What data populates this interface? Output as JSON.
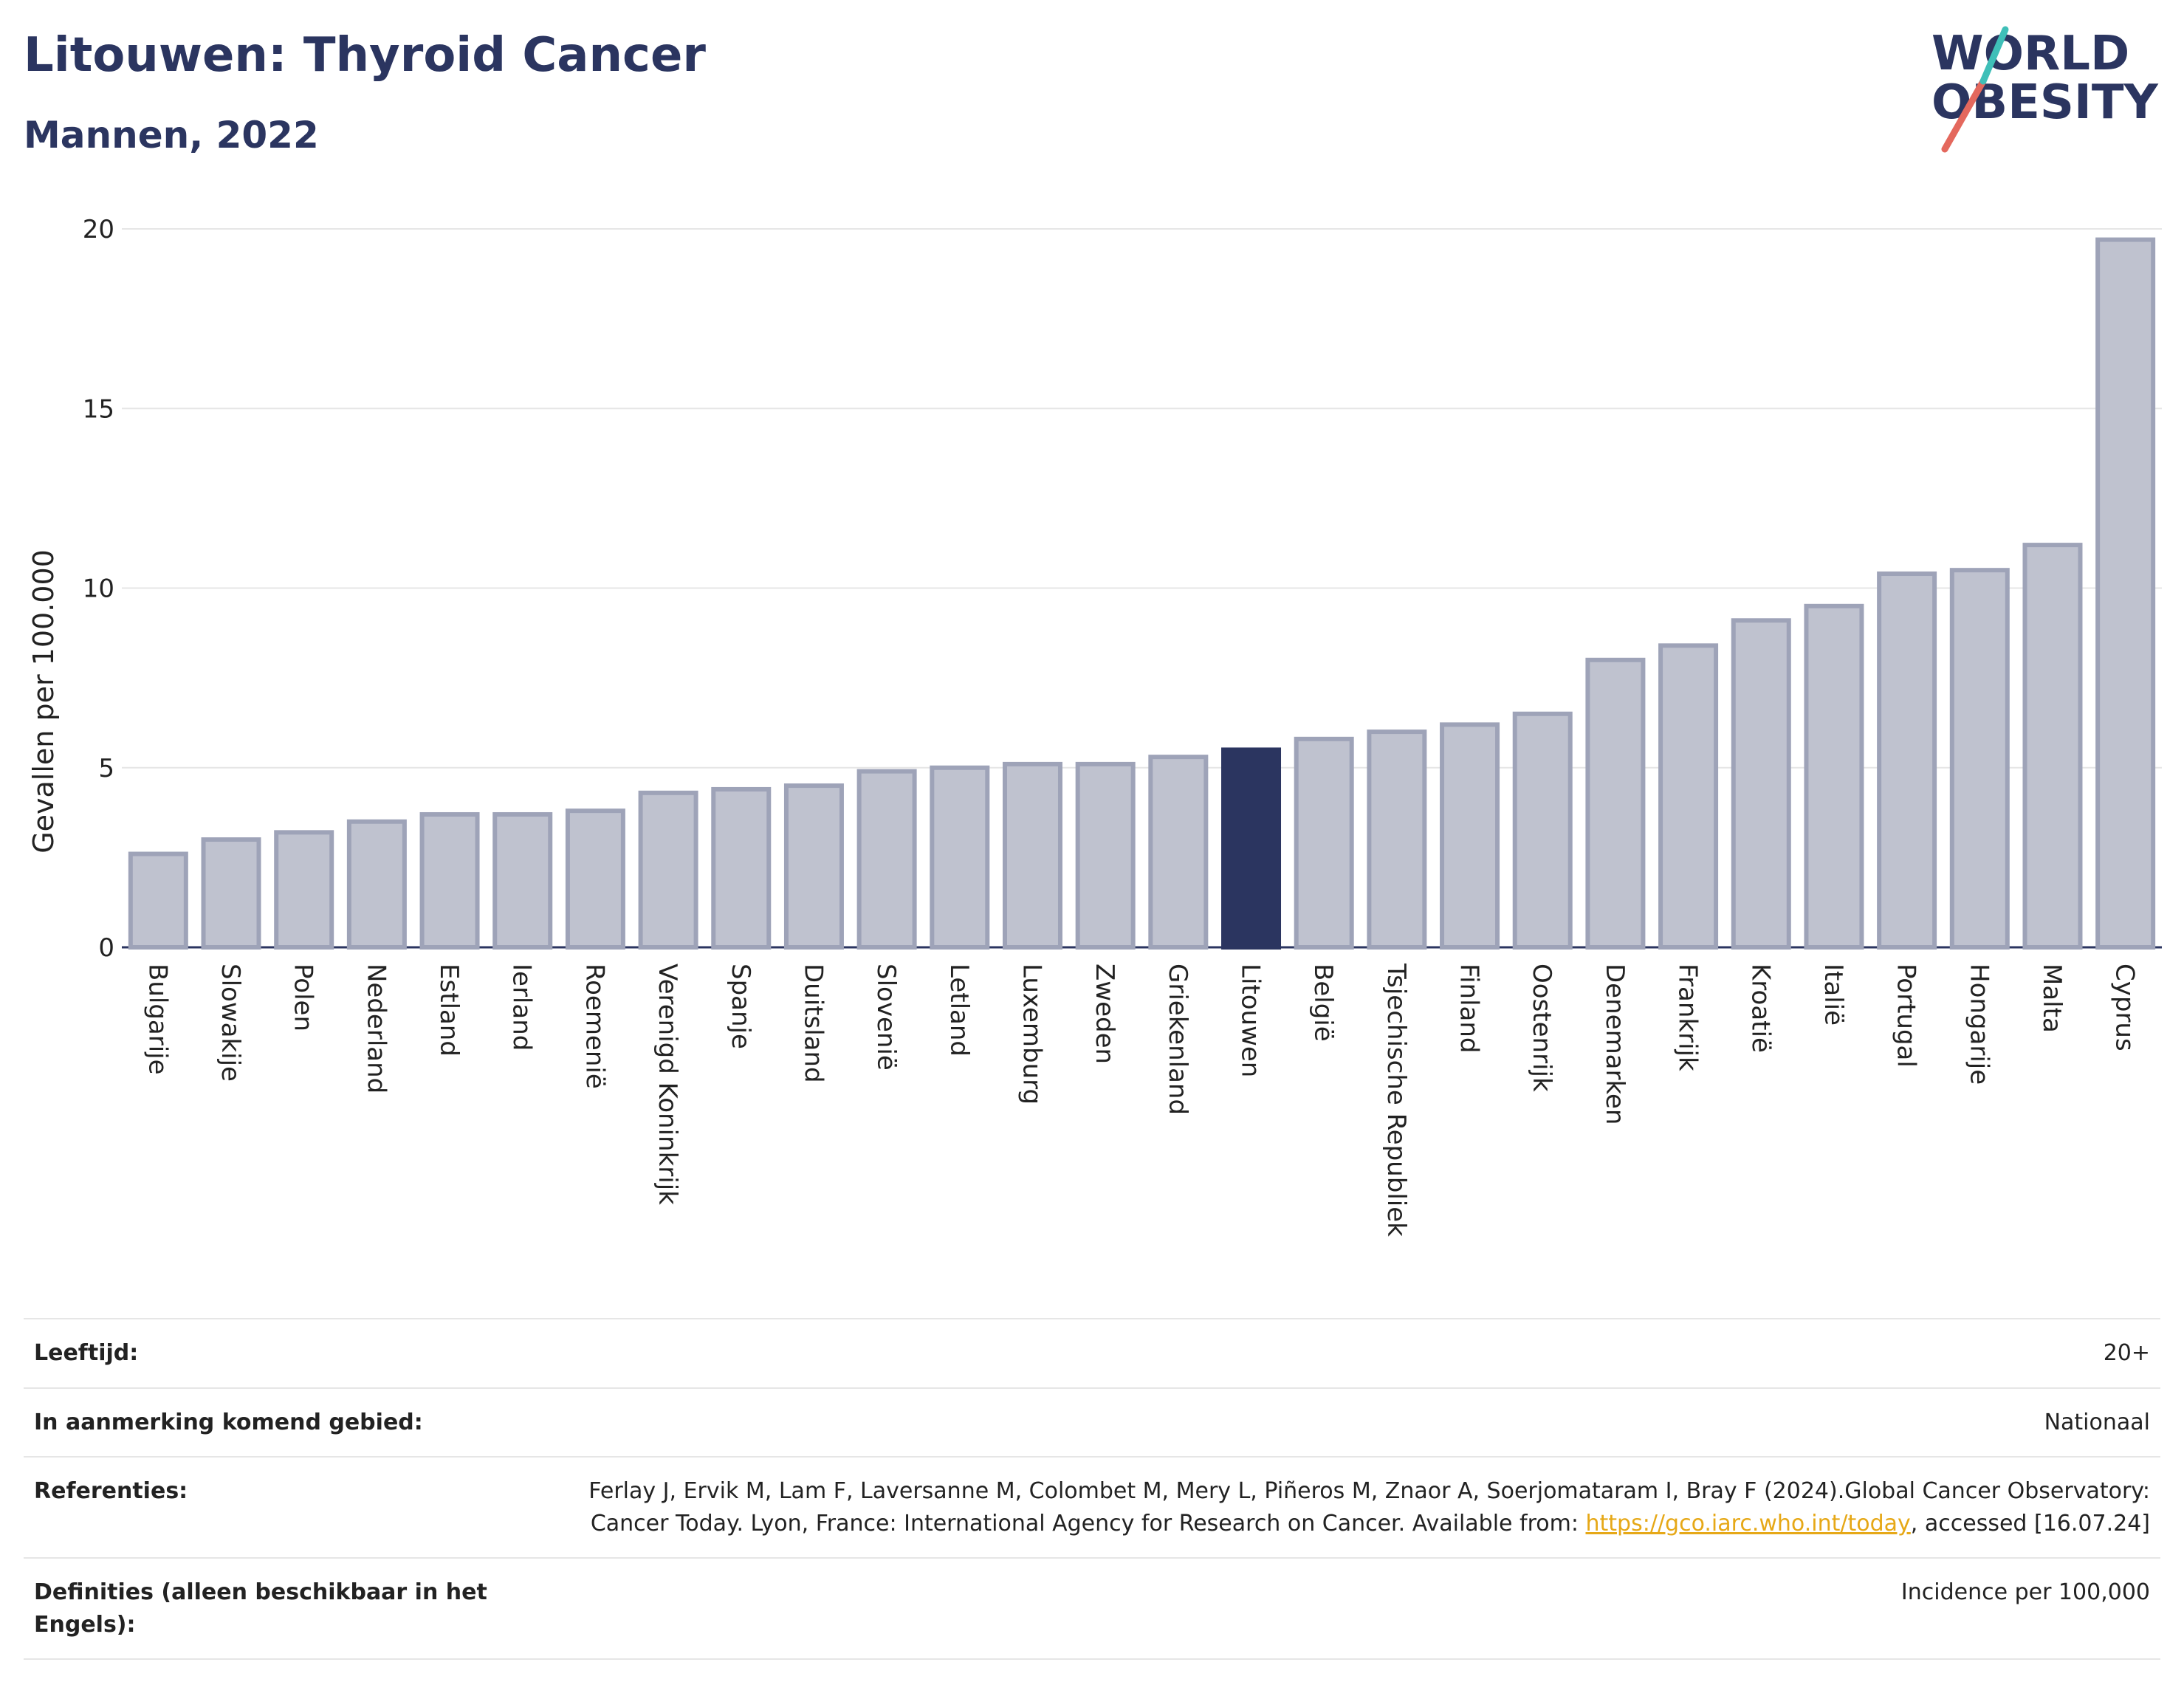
{
  "header": {
    "title": "Litouwen: Thyroid Cancer",
    "subtitle": "Mannen, 2022"
  },
  "logo": {
    "line1": "WORLD",
    "line2": "OBESITY",
    "accent_colors": [
      "#e4685d",
      "#3fbfb8"
    ]
  },
  "colors": {
    "bar": "#bfc2cf",
    "bar_border": "#9ea3b8",
    "highlight": "#2b3560",
    "grid": "#e6e6e6",
    "axis": "#2b3560"
  },
  "chart_data": {
    "type": "bar",
    "title": "Litouwen: Thyroid Cancer",
    "subtitle": "Mannen, 2022",
    "xlabel": "",
    "ylabel": "Gevallen per 100.000",
    "ylim": [
      0,
      20
    ],
    "yticks": [
      0,
      5,
      10,
      15,
      20
    ],
    "grid": true,
    "highlight_category": "Litouwen",
    "categories": [
      "Bulgarije",
      "Slowakije",
      "Polen",
      "Nederland",
      "Estland",
      "Ierland",
      "Roemenië",
      "Verenigd Koninkrijk",
      "Spanje",
      "Duitsland",
      "Slovenië",
      "Letland",
      "Luxemburg",
      "Zweden",
      "Griekenland",
      "Litouwen",
      "België",
      "Tsjechische Republiek",
      "Finland",
      "Oostenrijk",
      "Denemarken",
      "Frankrijk",
      "Kroatië",
      "Italië",
      "Portugal",
      "Hongarije",
      "Malta",
      "Cyprus"
    ],
    "values": [
      2.6,
      3.0,
      3.2,
      3.5,
      3.7,
      3.7,
      3.8,
      4.3,
      4.4,
      4.5,
      4.9,
      5.0,
      5.1,
      5.1,
      5.3,
      5.5,
      5.8,
      6.0,
      6.2,
      6.5,
      8.0,
      8.4,
      9.1,
      9.5,
      10.4,
      10.5,
      11.2,
      19.7
    ]
  },
  "info": [
    {
      "label": "Leeftijd:",
      "value": "20+"
    },
    {
      "label": "In aanmerking komend gebied:",
      "value": "Nationaal"
    },
    {
      "label": "Referenties:",
      "value": "Ferlay J, Ervik M, Lam F, Laversanne M, Colombet M, Mery L, Piñeros M, Znaor A, Soerjomataram I, Bray F (2024).Global Cancer Observatory: Cancer Today. Lyon, France: International Agency for Research on Cancer. Available from: ",
      "link": "https://gco.iarc.who.int/today",
      "suffix": ", accessed [16.07.24]"
    },
    {
      "label": "Definities (alleen beschikbaar in het Engels):",
      "value": "Incidence per 100,000"
    }
  ]
}
